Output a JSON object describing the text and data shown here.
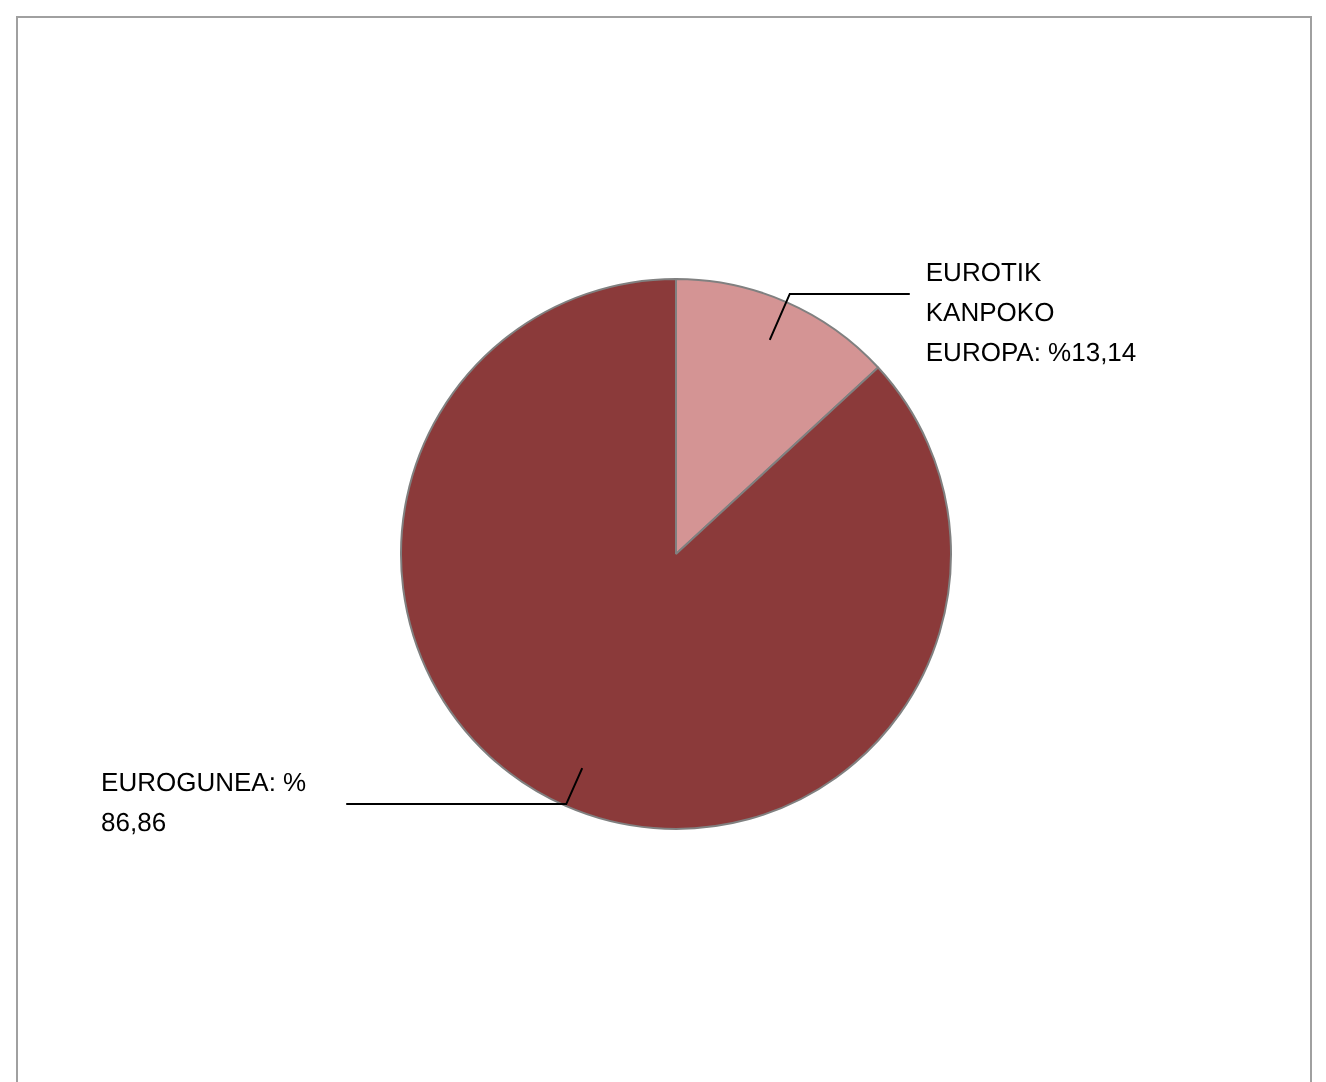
{
  "chart_data": {
    "type": "pie",
    "categories": [
      "EUROTIK KANPOKO EUROPA",
      "EUROGUNEA"
    ],
    "values": [
      13.14,
      86.86
    ],
    "value_labels": [
      "%13,14",
      "% 86,86"
    ],
    "colors": [
      "#d49494",
      "#8b3a3a"
    ],
    "legend": false
  }
}
